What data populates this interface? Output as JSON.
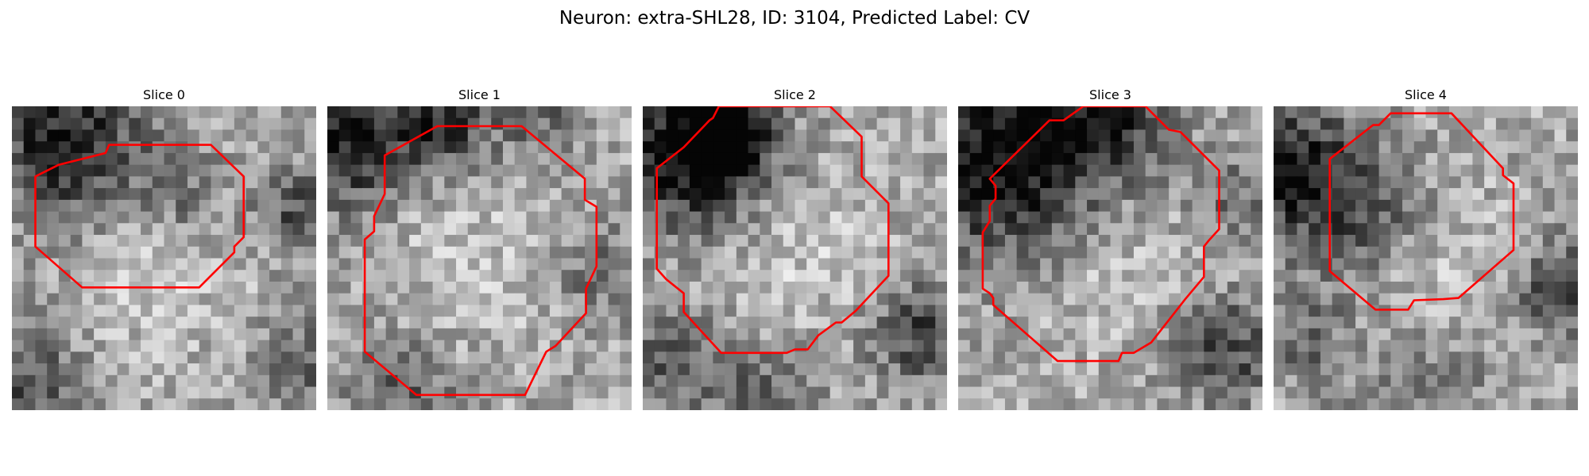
{
  "title": "Neuron: extra-SHL28, ID: 3104, Predicted Label: CV",
  "contour_color": "#ff0000",
  "panels": [
    {
      "label": "Slice 0",
      "seed": 11,
      "dark_spots": [
        [
          0.18,
          0.12,
          0.18,
          0.55
        ],
        [
          0.55,
          0.28,
          0.1,
          0.25
        ],
        [
          0.93,
          0.35,
          0.1,
          0.35
        ],
        [
          0.05,
          0.9,
          0.12,
          0.35
        ],
        [
          0.95,
          0.85,
          0.1,
          0.3
        ]
      ],
      "contour": [
        [
          4,
          5
        ],
        [
          8,
          4
        ],
        [
          8.3,
          3.3
        ],
        [
          17,
          3.3
        ],
        [
          19.8,
          6
        ],
        [
          19.8,
          11.2
        ],
        [
          19,
          12
        ],
        [
          19,
          12.5
        ],
        [
          17,
          14.5
        ],
        [
          16,
          15.5
        ],
        [
          6,
          15.5
        ],
        [
          2,
          12
        ],
        [
          2,
          6
        ]
      ]
    },
    {
      "label": "Slice 1",
      "seed": 23,
      "dark_spots": [
        [
          0.05,
          0.12,
          0.15,
          0.55
        ],
        [
          0.38,
          0.05,
          0.12,
          0.45
        ],
        [
          0.25,
          0.92,
          0.12,
          0.3
        ],
        [
          0.9,
          0.55,
          0.1,
          0.25
        ],
        [
          0.7,
          0.02,
          0.1,
          0.25
        ]
      ],
      "contour": [
        [
          4.9,
          4.2
        ],
        [
          9.4,
          1.7
        ],
        [
          16.6,
          1.7
        ],
        [
          22,
          6.2
        ],
        [
          22,
          8
        ],
        [
          23,
          8.6
        ],
        [
          23,
          13.7
        ],
        [
          22.1,
          15.6
        ],
        [
          22.1,
          17.7
        ],
        [
          19.5,
          20.5
        ],
        [
          18.7,
          21
        ],
        [
          16.9,
          24.7
        ],
        [
          7.6,
          24.7
        ],
        [
          3.2,
          21
        ],
        [
          3.2,
          11.4
        ],
        [
          4,
          10.7
        ],
        [
          4,
          9.4
        ],
        [
          4.9,
          7.5
        ]
      ]
    },
    {
      "label": "Slice 2",
      "seed": 37,
      "dark_spots": [
        [
          0.15,
          0.15,
          0.18,
          0.65
        ],
        [
          0.28,
          0.1,
          0.1,
          0.5
        ],
        [
          0.92,
          0.75,
          0.12,
          0.4
        ],
        [
          0.1,
          0.85,
          0.12,
          0.3
        ],
        [
          0.4,
          0.95,
          0.12,
          0.25
        ]
      ],
      "contour": [
        [
          1.2,
          5.3
        ],
        [
          3.5,
          3.5
        ],
        [
          5.7,
          1.2
        ],
        [
          6,
          1
        ],
        [
          6.5,
          0
        ],
        [
          16,
          0
        ],
        [
          18.7,
          2.6
        ],
        [
          18.7,
          6
        ],
        [
          21,
          8.3
        ],
        [
          21,
          14.5
        ],
        [
          18.2,
          17.5
        ],
        [
          17,
          18.5
        ],
        [
          16.5,
          18.5
        ],
        [
          15,
          19.6
        ],
        [
          14.1,
          20.8
        ],
        [
          13,
          20.8
        ],
        [
          12.3,
          21.1
        ],
        [
          6.7,
          21.1
        ],
        [
          3.5,
          17.6
        ],
        [
          3.5,
          16
        ],
        [
          2,
          14.8
        ],
        [
          1.2,
          13.9
        ]
      ]
    },
    {
      "label": "Slice 3",
      "seed": 53,
      "dark_spots": [
        [
          0.15,
          0.18,
          0.22,
          0.65
        ],
        [
          0.5,
          0.05,
          0.15,
          0.4
        ],
        [
          0.88,
          0.8,
          0.12,
          0.4
        ],
        [
          0.9,
          0.3,
          0.1,
          0.25
        ]
      ],
      "contour": [
        [
          2.7,
          6.2
        ],
        [
          7.8,
          1.2
        ],
        [
          9,
          1.2
        ],
        [
          10.7,
          0
        ],
        [
          16,
          0
        ],
        [
          18,
          2
        ],
        [
          19,
          2.2
        ],
        [
          22.3,
          5.5
        ],
        [
          22.3,
          10.5
        ],
        [
          21.4,
          11.5
        ],
        [
          21,
          12
        ],
        [
          21,
          14.6
        ],
        [
          19.4,
          16.5
        ],
        [
          16.5,
          20.2
        ],
        [
          15,
          21.1
        ],
        [
          14,
          21.1
        ],
        [
          13.7,
          21.8
        ],
        [
          8.5,
          21.8
        ],
        [
          3,
          17
        ],
        [
          3,
          16.4
        ],
        [
          2.7,
          16
        ],
        [
          2.1,
          15.6
        ],
        [
          2.1,
          10.8
        ],
        [
          2.7,
          9.8
        ],
        [
          2.7,
          8.5
        ],
        [
          3.2,
          7.9
        ],
        [
          3.2,
          6.8
        ]
      ]
    },
    {
      "label": "Slice 4",
      "seed": 71,
      "dark_spots": [
        [
          0.05,
          0.2,
          0.15,
          0.55
        ],
        [
          0.3,
          0.35,
          0.15,
          0.35
        ],
        [
          0.95,
          0.6,
          0.1,
          0.45
        ],
        [
          0.1,
          0.75,
          0.12,
          0.25
        ],
        [
          0.5,
          0.95,
          0.15,
          0.2
        ]
      ],
      "contour": [
        [
          4.8,
          4.5
        ],
        [
          8.5,
          1.6
        ],
        [
          9,
          1.6
        ],
        [
          10,
          0.6
        ],
        [
          15.2,
          0.6
        ],
        [
          19.6,
          5.3
        ],
        [
          19.6,
          5.9
        ],
        [
          20.5,
          6.6
        ],
        [
          20.5,
          12.3
        ],
        [
          15.8,
          16.4
        ],
        [
          14.5,
          16.5
        ],
        [
          12,
          16.6
        ],
        [
          11.5,
          17.4
        ],
        [
          8.7,
          17.4
        ],
        [
          4.8,
          14.1
        ],
        [
          4.8,
          7.2
        ]
      ]
    }
  ]
}
